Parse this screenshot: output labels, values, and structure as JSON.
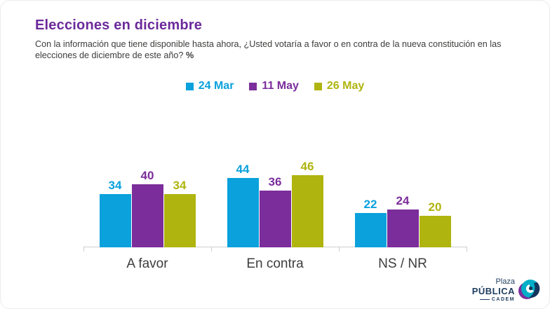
{
  "slide": {
    "title": "Elecciones en diciembre",
    "subtitle_line1": "Con la información que tiene disponible hasta ahora, ¿Usted votaría a favor o en contra de la nueva constitución",
    "subtitle_line2": "en las elecciones de diciembre de este año?",
    "subtitle_pct": "%"
  },
  "chart_data": {
    "type": "bar",
    "title": "Elecciones en diciembre",
    "categories": [
      "A favor",
      "En contra",
      "NS / NR"
    ],
    "series": [
      {
        "name": "24 Mar",
        "color": "#0AA1DC",
        "values": [
          34,
          44,
          22
        ]
      },
      {
        "name": "11 May",
        "color": "#7B2D9B",
        "values": [
          40,
          36,
          24
        ]
      },
      {
        "name": "26 May",
        "color": "#AFB40E",
        "values": [
          34,
          46,
          20
        ]
      }
    ],
    "ylim": [
      0,
      50
    ],
    "grid": false,
    "legend_position": "top-center",
    "data_labels": true,
    "xlabel": "",
    "ylabel": ""
  },
  "colors": {
    "title": "#6B2A9B",
    "subtitle": "#3C3C3B",
    "axis": "#cdcdcd",
    "category_label": "#3d3d3d",
    "logo_navy": "#1E3D5F",
    "logo_teal": "#00AEC7",
    "logo_purple": "#7B2D9B"
  },
  "logo": {
    "line1": "Plaza",
    "line2": "PÚBLICA",
    "line3": "CADEM"
  }
}
